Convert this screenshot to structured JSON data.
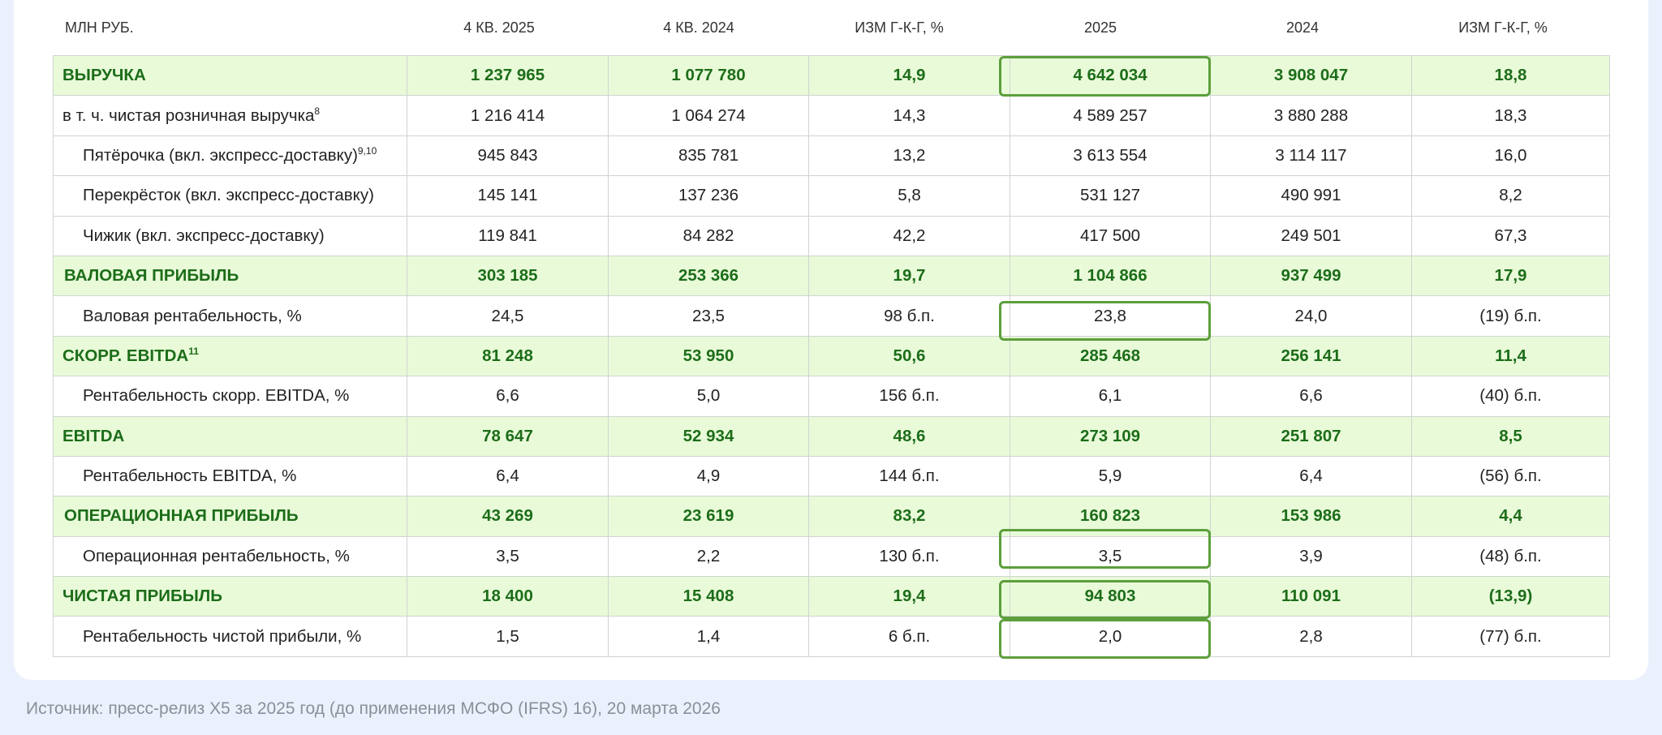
{
  "table": {
    "columns": [
      "МЛН РУБ.",
      "4 КВ. 2025",
      "4 КВ. 2024",
      "ИЗМ Г-К-Г, %",
      "2025",
      "2024",
      "ИЗМ Г-К-Г, %"
    ],
    "rows": [
      {
        "label": "ВЫРУЧКА",
        "values": [
          "1 237 965",
          "1 077 780",
          "14,9",
          "4 642 034",
          "3 908 047",
          "18,8"
        ]
      },
      {
        "label": "в т. ч. чистая розничная выручка",
        "sup": "8",
        "values": [
          "1 216 414",
          "1 064 274",
          "14,3",
          "4 589 257",
          "3 880 288",
          "18,3"
        ]
      },
      {
        "label": "Пятёрочка (вкл. экспресс-доставку)",
        "sup": "9,10",
        "values": [
          "945 843",
          "835 781",
          "13,2",
          "3 613 554",
          "3 114 117",
          "16,0"
        ]
      },
      {
        "label": "Перекрёсток (вкл. экспресс-доставку)",
        "values": [
          "145 141",
          "137 236",
          "5,8",
          "531 127",
          "490 991",
          "8,2"
        ]
      },
      {
        "label": "Чижик (вкл. экспресс-доставку)",
        "values": [
          "119 841",
          "84 282",
          "42,2",
          "417 500",
          "249 501",
          "67,3"
        ]
      },
      {
        "label": "ВАЛОВАЯ ПРИБЫЛЬ",
        "values": [
          "303 185",
          "253 366",
          "19,7",
          "1 104 866",
          "937 499",
          "17,9"
        ]
      },
      {
        "label": "Валовая рентабельность, %",
        "values": [
          "24,5",
          "23,5",
          "98 б.п.",
          "23,8",
          "24,0",
          "(19) б.п."
        ]
      },
      {
        "label": "СКОРР. EBITDA",
        "sup": "11",
        "values": [
          "81 248",
          "53 950",
          "50,6",
          "285 468",
          "256 141",
          "11,4"
        ]
      },
      {
        "label": "Рентабельность скорр. EBITDA, %",
        "values": [
          "6,6",
          "5,0",
          "156 б.п.",
          "6,1",
          "6,6",
          "(40) б.п."
        ]
      },
      {
        "label": "EBITDA",
        "values": [
          "78 647",
          "52 934",
          "48,6",
          "273 109",
          "251 807",
          "8,5"
        ]
      },
      {
        "label": "Рентабельность EBITDA, %",
        "values": [
          "6,4",
          "4,9",
          "144 б.п.",
          "5,9",
          "6,4",
          "(56) б.п."
        ]
      },
      {
        "label": "ОПЕРАЦИОННАЯ ПРИБЫЛЬ",
        "values": [
          "43 269",
          "23 619",
          "83,2",
          "160 823",
          "153 986",
          "4,4"
        ]
      },
      {
        "label": "Операционная рентабельность, %",
        "values": [
          "3,5",
          "2,2",
          "130 б.п.",
          "3,5",
          "3,9",
          "(48) б.п."
        ]
      },
      {
        "label": "ЧИСТАЯ ПРИБЫЛЬ",
        "values": [
          "18 400",
          "15 408",
          "19,4",
          "94 803",
          "110 091",
          "(13,9)"
        ]
      },
      {
        "label": "Рентабельность чистой прибыли, %",
        "values": [
          "1,5",
          "1,4",
          "6 б.п.",
          "2,0",
          "2,8",
          "(77) б.п."
        ]
      }
    ]
  },
  "source": "Источник: пресс-релиз X5 за 2025 год (до применения МСФО (IFRS) 16), 20 марта 2026",
  "colors": {
    "page_bg": "#ebf1fc",
    "major_row_bg": "#e9fad9",
    "major_row_text": "#1c6d19",
    "highlight_border": "#5c9f3b"
  }
}
